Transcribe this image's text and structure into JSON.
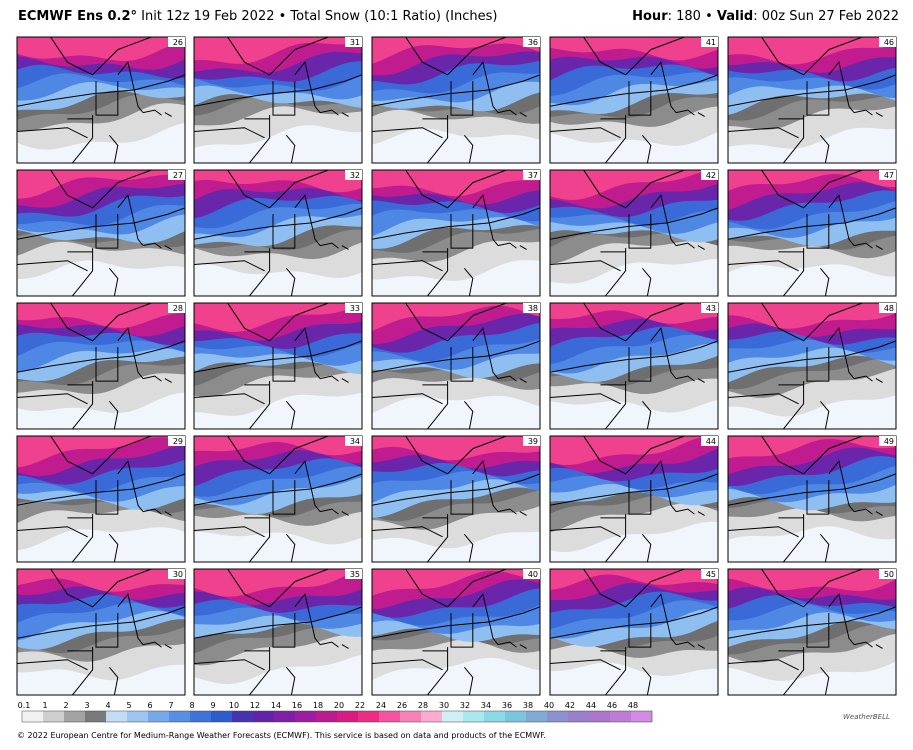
{
  "header": {
    "model": "ECMWF Ens 0.2°",
    "info": " Init 12z 19 Feb 2022 • Total Snow (10:1 Ratio) (Inches)",
    "hour_label": "Hour",
    "hour_value": ": 180 • ",
    "valid_label": "Valid",
    "valid_value": ": 00z Sun 27 Feb 2022"
  },
  "members": [
    [
      "26",
      "27",
      "28",
      "29",
      "30"
    ],
    [
      "31",
      "32",
      "33",
      "34",
      "35"
    ],
    [
      "36",
      "37",
      "38",
      "39",
      "40"
    ],
    [
      "41",
      "42",
      "43",
      "44",
      "45"
    ],
    [
      "46",
      "47",
      "48",
      "49",
      "50"
    ]
  ],
  "colorbar": {
    "labels": [
      "0.1",
      "1",
      "2",
      "3",
      "4",
      "5",
      "6",
      "7",
      "8",
      "9",
      "10",
      "12",
      "14",
      "16",
      "18",
      "20",
      "22",
      "24",
      "26",
      "28",
      "30",
      "32",
      "34",
      "36",
      "38",
      "40",
      "42",
      "44",
      "46",
      "48"
    ],
    "colors": [
      "#f2f2f2",
      "#cfcfcf",
      "#a3a3a3",
      "#7a7a7a",
      "#c3dcf6",
      "#9cc6f1",
      "#75a9ec",
      "#558fe6",
      "#3d74dc",
      "#2c5ccd",
      "#4732b0",
      "#6322a9",
      "#7f1ea6",
      "#9c1ca2",
      "#bb1a93",
      "#d81c84",
      "#ee2c86",
      "#f553a0",
      "#f97fb7",
      "#fbabcf",
      "#cfeff4",
      "#a8e8ef",
      "#86dbe7",
      "#79c6df",
      "#82aad7",
      "#8b92d1",
      "#9a80cc",
      "#ac76ce",
      "#c07bd8",
      "#d28ae3"
    ]
  },
  "footer": "© 2022 European Centre for Medium-Range Weather Forecasts (ECMWF). This service is based on data and products of the ECMWF.",
  "logo": "WeatherBELL"
}
